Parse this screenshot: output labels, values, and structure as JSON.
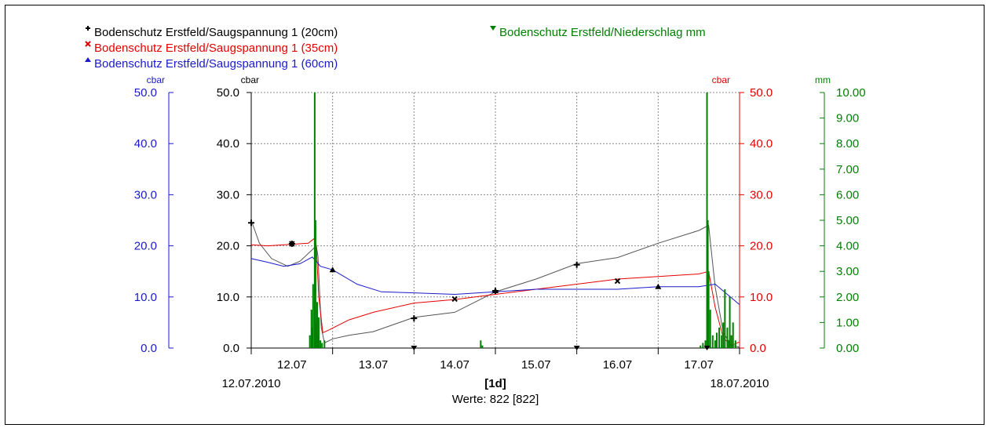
{
  "chart_data": {
    "type": "line",
    "legend": {
      "placement": "top-left",
      "entries": [
        {
          "label": "Bodenschutz Erstfeld/Saugspannung 1 (20cm)",
          "color": "#000000",
          "marker": "+"
        },
        {
          "label": "Bodenschutz Erstfeld/Saugspannung 1 (35cm)",
          "color": "#e60000",
          "marker": "x"
        },
        {
          "label": "Bodenschutz Erstfeld/Saugspannung 1 (60cm)",
          "color": "#1a1acc",
          "marker": "triangle-up"
        },
        {
          "label": "Bodenschutz Erstfeld/Niederschlag mm",
          "color": "#008000",
          "marker": "triangle-down"
        }
      ]
    },
    "axes": {
      "left_outer": {
        "unit": "cbar",
        "color": "#1a1acc",
        "range": [
          0,
          50
        ],
        "ticks": [
          "50.0",
          "40.0",
          "30.0",
          "20.0",
          "10.0",
          "0.0"
        ]
      },
      "left_inner": {
        "unit": "cbar",
        "color": "#000000",
        "range": [
          0,
          50
        ],
        "ticks": [
          "50.0",
          "40.0",
          "30.0",
          "20.0",
          "10.0",
          "0.0"
        ]
      },
      "right_inner": {
        "unit": "cbar",
        "color": "#e60000",
        "range": [
          0,
          50
        ],
        "ticks": [
          "50.0",
          "40.0",
          "30.0",
          "20.0",
          "10.0",
          "0.0"
        ]
      },
      "right_outer": {
        "unit": "mm",
        "color": "#008000",
        "range": [
          0,
          10
        ],
        "ticks": [
          "10.00",
          "9.00",
          "8.00",
          "7.00",
          "6.00",
          "5.00",
          "4.00",
          "3.00",
          "2.00",
          "1.00",
          "0.00"
        ]
      }
    },
    "x_axis": {
      "range_days": [
        0,
        6
      ],
      "tick_labels": [
        "12.07",
        "13.07",
        "14.07",
        "15.07",
        "16.07",
        "17.07"
      ],
      "start_label": "12.07.2010",
      "end_label": "18.07.2010",
      "interval_label": "[1d]",
      "count_label": "Werte: 822 [822]"
    },
    "grid": true,
    "series": [
      {
        "name": "Bodenschutz Erstfeld/Saugspannung 1 (20cm)",
        "color": "#555555",
        "axis": "left_inner",
        "x": [
          0,
          0.1,
          0.25,
          0.45,
          0.6,
          0.8,
          0.82,
          0.86,
          0.9,
          1.0,
          1.2,
          1.5,
          2.0,
          2.5,
          3.0,
          3.5,
          4.0,
          4.5,
          5.0,
          5.5,
          5.62,
          5.7,
          5.8,
          5.9,
          6.0
        ],
        "y": [
          25,
          20.5,
          17.5,
          16.0,
          17.0,
          20.0,
          18.0,
          4.0,
          1.0,
          1.8,
          2.5,
          3.2,
          6.0,
          7.0,
          11.0,
          13.5,
          16.5,
          17.7,
          20.5,
          23.0,
          24.0,
          12.0,
          3.0,
          0.5,
          0.2
        ]
      },
      {
        "name": "Bodenschutz Erstfeld/Saugspannung 1 (35cm)",
        "color": "#e60000",
        "axis": "right_inner",
        "x": [
          0,
          0.2,
          0.5,
          0.7,
          0.78,
          0.8,
          0.83,
          0.88,
          0.95,
          1.2,
          1.5,
          2.0,
          2.5,
          3.0,
          3.5,
          4.0,
          4.5,
          5.0,
          5.5,
          5.62,
          5.7,
          5.8,
          5.9,
          6.0
        ],
        "y": [
          20.2,
          20.0,
          20.3,
          20.5,
          21.5,
          20.0,
          10.0,
          3.0,
          3.5,
          5.5,
          7.0,
          8.8,
          9.5,
          10.5,
          11.5,
          12.5,
          13.5,
          14.0,
          14.5,
          15.0,
          8.0,
          2.0,
          0.5,
          1.2
        ]
      },
      {
        "name": "Bodenschutz Erstfeld/Saugspannung 1 (60cm)",
        "color": "#1a1acc",
        "axis": "left_outer",
        "x": [
          0,
          0.2,
          0.4,
          0.6,
          0.75,
          0.8,
          0.85,
          1.0,
          1.3,
          1.6,
          2.0,
          2.5,
          3.0,
          3.5,
          4.0,
          4.5,
          5.0,
          5.5,
          5.7,
          5.85,
          6.0
        ],
        "y": [
          17.5,
          16.8,
          16.0,
          16.5,
          17.8,
          17.0,
          16.0,
          15.3,
          12.5,
          11.0,
          10.8,
          10.5,
          11.0,
          11.5,
          11.5,
          11.5,
          12.0,
          12.0,
          12.5,
          10.5,
          8.5
        ]
      },
      {
        "name": "Bodenschutz Erstfeld/Niederschlag mm",
        "color": "#008000",
        "axis": "right_outer",
        "style": "bars",
        "x": [
          0.72,
          0.74,
          0.75,
          0.76,
          0.78,
          0.79,
          0.8,
          0.81,
          0.82,
          0.83,
          0.85,
          0.87,
          0.9,
          2.82,
          2.84,
          5.52,
          5.55,
          5.58,
          5.6,
          5.61,
          5.62,
          5.64,
          5.67,
          5.7,
          5.72,
          5.75,
          5.78,
          5.8,
          5.82,
          5.85,
          5.87,
          5.88,
          5.9,
          5.92,
          5.95
        ],
        "y": [
          0.5,
          1.5,
          0.8,
          2.5,
          10.0,
          5.0,
          1.0,
          1.8,
          0.5,
          1.2,
          0.3,
          0.2,
          0.3,
          0.3,
          0.1,
          0.1,
          0.2,
          0.3,
          10.0,
          5.0,
          3.0,
          1.5,
          0.5,
          0.3,
          0.6,
          0.8,
          0.5,
          1.0,
          2.3,
          0.8,
          0.3,
          2.0,
          0.5,
          1.0,
          0.3
        ]
      }
    ]
  }
}
